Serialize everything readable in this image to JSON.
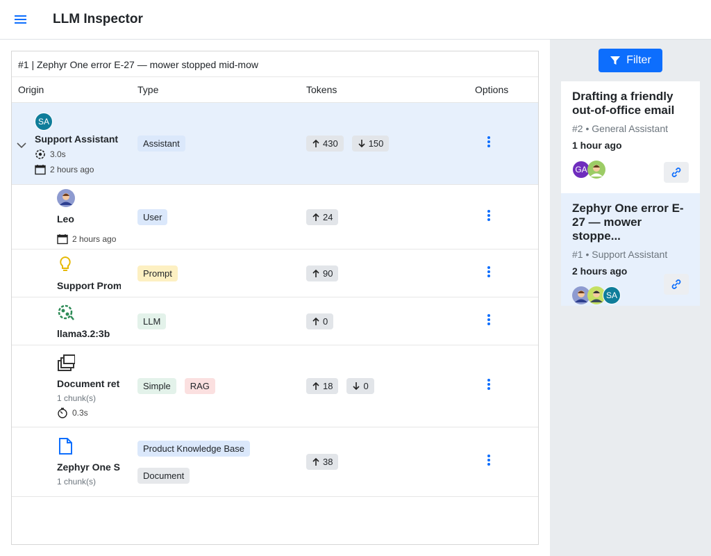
{
  "header": {
    "title": "LLM Inspector"
  },
  "trace": {
    "title": "#1 | Zephyr One error E-27 — mower stopped mid-mow",
    "columns": [
      "Origin",
      "Type",
      "Tokens",
      "Options"
    ],
    "rows": [
      {
        "avatar": "SA",
        "origin": "Support Assistant",
        "duration": "3.0s",
        "time": "2 hours ago",
        "types": [
          "Assistant"
        ],
        "tokens_in": 430,
        "tokens_out": 150
      },
      {
        "origin": "Leo",
        "time": "2 hours ago",
        "types": [
          "User"
        ],
        "tokens_in": 24
      },
      {
        "origin": "Support Prom",
        "types": [
          "Prompt"
        ],
        "tokens_in": 90
      },
      {
        "origin": "llama3.2:3b",
        "types": [
          "LLM"
        ],
        "tokens_in": 0
      },
      {
        "origin": "Document ret",
        "chunks": "1 chunk(s)",
        "duration": "0.3s",
        "types": [
          "Simple",
          "RAG"
        ],
        "tokens_in": 18,
        "tokens_out": 0
      },
      {
        "origin": "Zephyr One S",
        "chunks": "1 chunk(s)",
        "types": [
          "Product Knowledge Base",
          "Document"
        ],
        "tokens_in": 38
      }
    ]
  },
  "sidebar": {
    "filter": "Filter",
    "cards": [
      {
        "title": "Drafting a friendly out-of-office email",
        "id": "#2",
        "assistant": "General Assistant",
        "time": "1 hour ago",
        "avatars": [
          "GA"
        ]
      },
      {
        "title": "Zephyr One error E-27 — mower stoppe...",
        "id": "#1",
        "assistant": "Support Assistant",
        "time": "2 hours ago",
        "avatars": [
          "SA"
        ]
      }
    ]
  }
}
